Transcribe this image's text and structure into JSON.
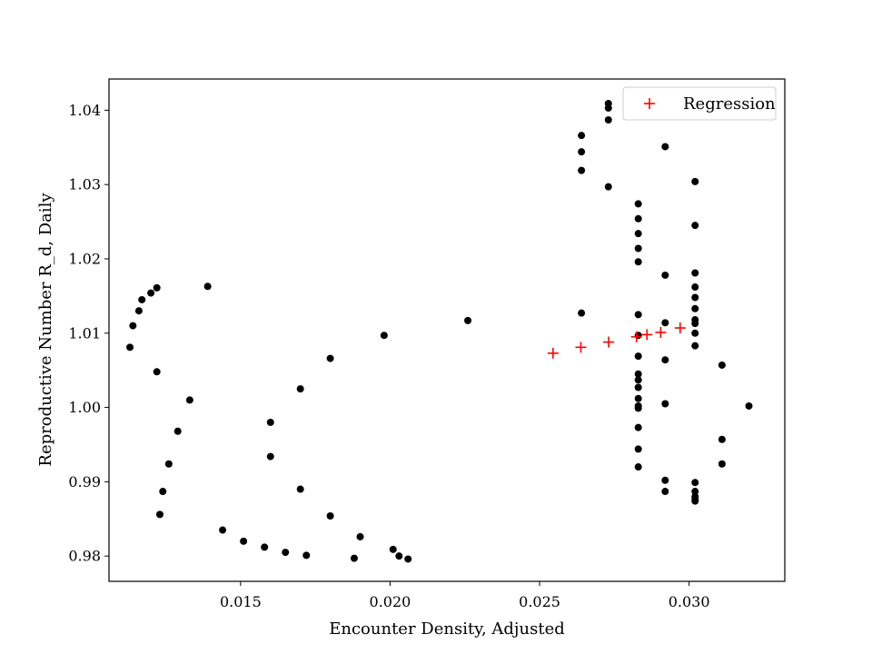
{
  "chart_data": {
    "type": "scatter",
    "title": "",
    "xlabel": "Encounter Density, Adjusted",
    "ylabel": "Reproductive Number R_d, Daily",
    "xlim": [
      0.0106,
      0.0332
    ],
    "ylim": [
      0.9766,
      1.0442
    ],
    "xticks": [
      0.015,
      0.02,
      0.025,
      0.03
    ],
    "xtick_labels": [
      "0.015",
      "0.020",
      "0.025",
      "0.030"
    ],
    "yticks": [
      0.98,
      0.99,
      1.0,
      1.01,
      1.02,
      1.03,
      1.04
    ],
    "ytick_labels": [
      "0.98",
      "0.99",
      "1.00",
      "1.01",
      "1.02",
      "1.03",
      "1.04"
    ],
    "grid": false,
    "legend": {
      "position": "top-right",
      "entries": [
        "Regression"
      ]
    },
    "series": [
      {
        "marker": "dot",
        "color": "#000000",
        "points": [
          [
            0.0113,
            1.0081
          ],
          [
            0.0114,
            1.011
          ],
          [
            0.0116,
            1.013
          ],
          [
            0.0117,
            1.0145
          ],
          [
            0.012,
            1.0154
          ],
          [
            0.0122,
            1.0161
          ],
          [
            0.0122,
            1.0048
          ],
          [
            0.0123,
            0.9856
          ],
          [
            0.0124,
            0.9887
          ],
          [
            0.0126,
            0.9924
          ],
          [
            0.0129,
            0.9968
          ],
          [
            0.0133,
            1.001
          ],
          [
            0.0139,
            1.0163
          ],
          [
            0.0144,
            0.9835
          ],
          [
            0.0151,
            0.982
          ],
          [
            0.0158,
            0.9812
          ],
          [
            0.016,
            0.998
          ],
          [
            0.016,
            0.9934
          ],
          [
            0.0165,
            0.9805
          ],
          [
            0.017,
            1.0025
          ],
          [
            0.017,
            0.989
          ],
          [
            0.0172,
            0.9801
          ],
          [
            0.018,
            1.0066
          ],
          [
            0.018,
            0.9854
          ],
          [
            0.0188,
            0.9797
          ],
          [
            0.019,
            0.9826
          ],
          [
            0.0198,
            1.0097
          ],
          [
            0.0201,
            0.9809
          ],
          [
            0.0203,
            0.98
          ],
          [
            0.0206,
            0.9796
          ],
          [
            0.0226,
            1.0117
          ],
          [
            0.0264,
            1.0366
          ],
          [
            0.0264,
            1.0344
          ],
          [
            0.0264,
            1.0319
          ],
          [
            0.0264,
            1.0127
          ],
          [
            0.0273,
            1.0409
          ],
          [
            0.0273,
            1.0403
          ],
          [
            0.0273,
            1.0387
          ],
          [
            0.0273,
            1.0297
          ],
          [
            0.0283,
            1.0274
          ],
          [
            0.0283,
            1.0254
          ],
          [
            0.0283,
            1.0234
          ],
          [
            0.0283,
            1.0214
          ],
          [
            0.0283,
            1.0196
          ],
          [
            0.0283,
            1.0125
          ],
          [
            0.0283,
            1.0097
          ],
          [
            0.0283,
            1.0069
          ],
          [
            0.0283,
            1.0045
          ],
          [
            0.0283,
            1.0037
          ],
          [
            0.0283,
            1.0027
          ],
          [
            0.0283,
            1.0012
          ],
          [
            0.0283,
            1.0002
          ],
          [
            0.0283,
            0.9999
          ],
          [
            0.0283,
            0.9973
          ],
          [
            0.0283,
            0.9944
          ],
          [
            0.0283,
            0.992
          ],
          [
            0.0292,
            1.0351
          ],
          [
            0.0292,
            1.0178
          ],
          [
            0.0292,
            1.0114
          ],
          [
            0.0292,
            1.0064
          ],
          [
            0.0292,
            1.0005
          ],
          [
            0.0292,
            0.9902
          ],
          [
            0.0292,
            0.9887
          ],
          [
            0.0302,
            1.0304
          ],
          [
            0.0302,
            1.0245
          ],
          [
            0.0302,
            1.0181
          ],
          [
            0.0302,
            1.0162
          ],
          [
            0.0302,
            1.0148
          ],
          [
            0.0302,
            1.0133
          ],
          [
            0.0302,
            1.0118
          ],
          [
            0.0302,
            1.0113
          ],
          [
            0.0302,
            1.01
          ],
          [
            0.0302,
            1.0083
          ],
          [
            0.0302,
            0.9899
          ],
          [
            0.0302,
            0.9887
          ],
          [
            0.0302,
            0.988
          ],
          [
            0.0302,
            0.9876
          ],
          [
            0.0302,
            0.9874
          ],
          [
            0.0311,
            1.0057
          ],
          [
            0.0311,
            0.9957
          ],
          [
            0.0311,
            0.9924
          ],
          [
            0.032,
            1.0002
          ]
        ]
      },
      {
        "name": "Regression",
        "marker": "plus",
        "color": "#ff0000",
        "points": [
          [
            0.02545,
            1.0073
          ],
          [
            0.02638,
            1.0081
          ],
          [
            0.02731,
            1.0088
          ],
          [
            0.02824,
            1.0095
          ],
          [
            0.02859,
            1.0098
          ],
          [
            0.02905,
            1.0101
          ],
          [
            0.0297,
            1.0107
          ]
        ]
      }
    ]
  }
}
